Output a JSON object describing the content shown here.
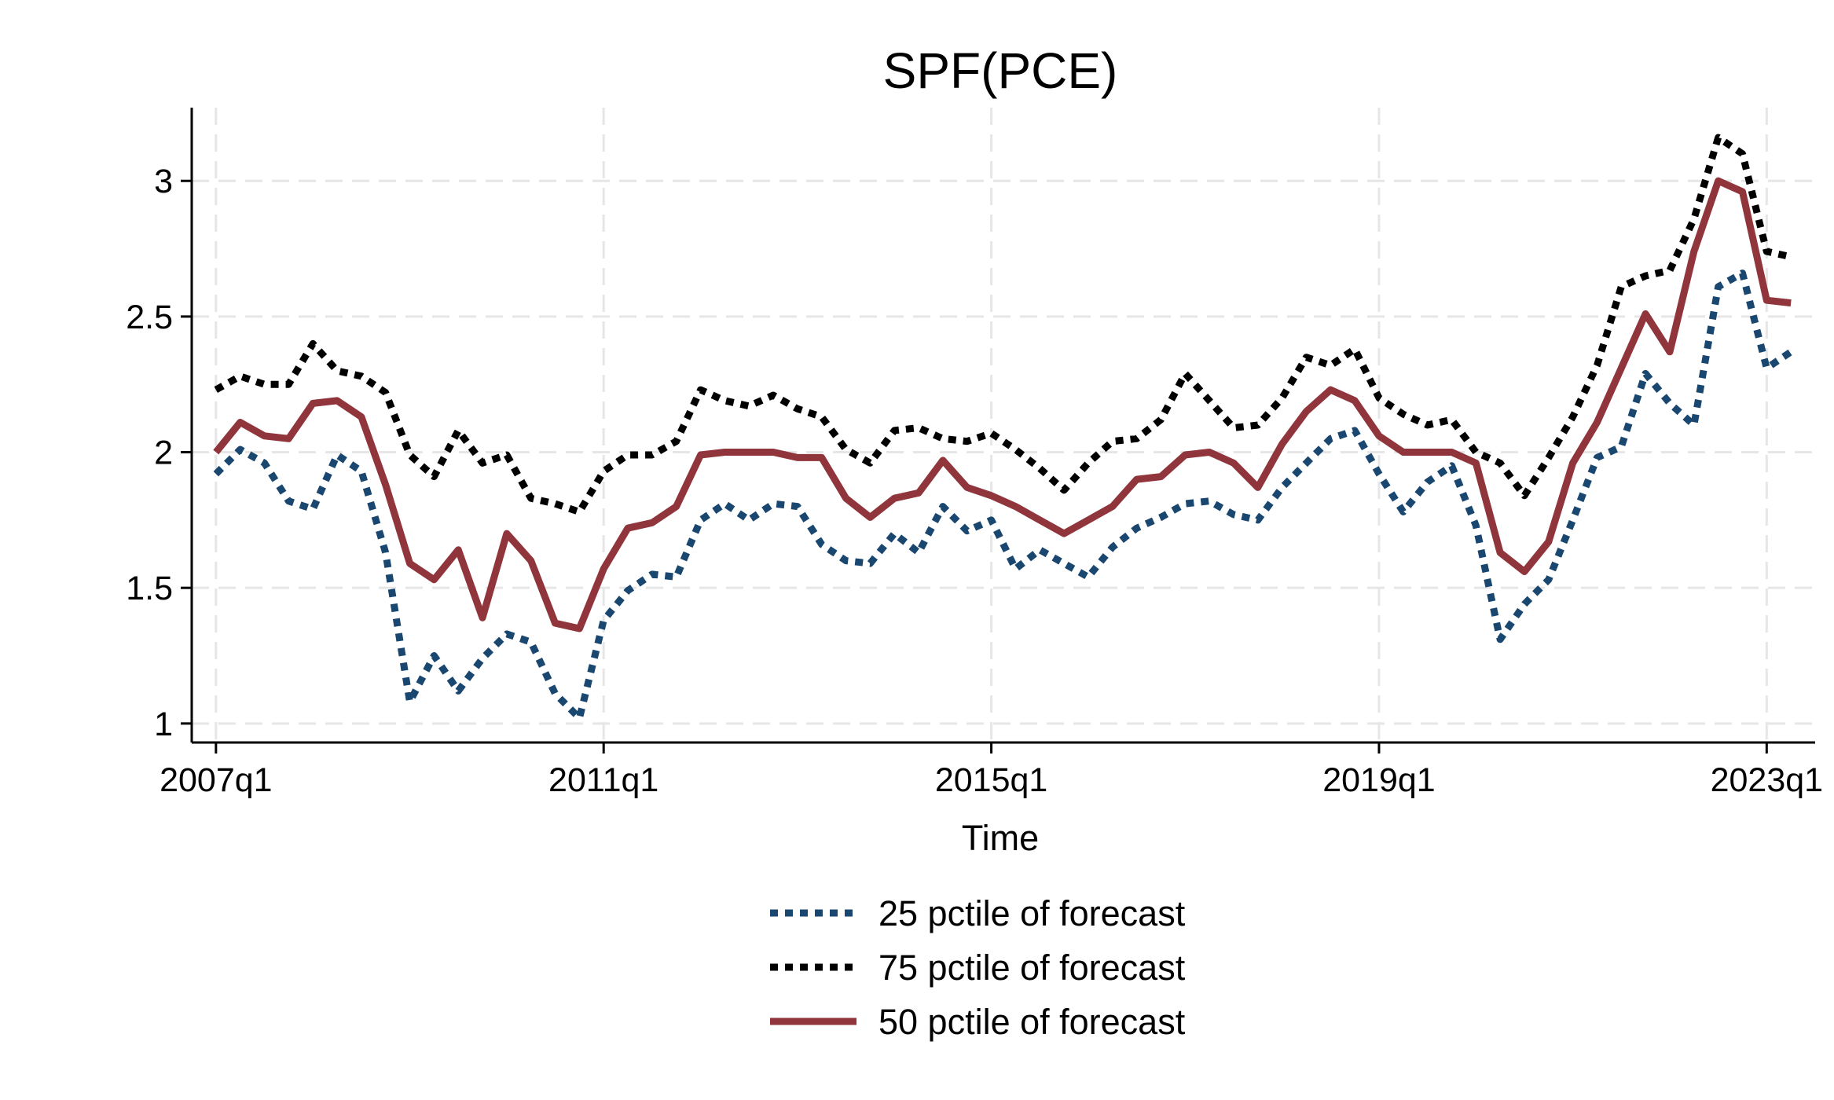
{
  "chart_data": {
    "type": "line",
    "title": "SPF(PCE)",
    "xlabel": "Time",
    "ylabel": "",
    "x_tick_labels": [
      "2007q1",
      "2011q1",
      "2015q1",
      "2019q1",
      "2023q1"
    ],
    "y_ticks": [
      1,
      1.5,
      2,
      2.5,
      3
    ],
    "y_tick_labels": [
      "1",
      "1.5",
      "2",
      "2.5",
      "3"
    ],
    "ylim": [
      0.93,
      3.27
    ],
    "xlim": [
      "2006q4",
      "2023q3"
    ],
    "grid": true,
    "legend_position": "bottom",
    "x": [
      "2007q1",
      "2007q2",
      "2007q3",
      "2007q4",
      "2008q1",
      "2008q2",
      "2008q3",
      "2008q4",
      "2009q1",
      "2009q2",
      "2009q3",
      "2009q4",
      "2010q1",
      "2010q2",
      "2010q3",
      "2010q4",
      "2011q1",
      "2011q2",
      "2011q3",
      "2011q4",
      "2012q1",
      "2012q2",
      "2012q3",
      "2012q4",
      "2013q1",
      "2013q2",
      "2013q3",
      "2013q4",
      "2014q1",
      "2014q2",
      "2014q3",
      "2014q4",
      "2015q1",
      "2015q2",
      "2015q3",
      "2015q4",
      "2016q1",
      "2016q2",
      "2016q3",
      "2016q4",
      "2017q1",
      "2017q2",
      "2017q3",
      "2017q4",
      "2018q1",
      "2018q2",
      "2018q3",
      "2018q4",
      "2019q1",
      "2019q2",
      "2019q3",
      "2019q4",
      "2020q1",
      "2020q2",
      "2020q3",
      "2020q4",
      "2021q1",
      "2021q2",
      "2021q3",
      "2021q4",
      "2022q1",
      "2022q2",
      "2022q3",
      "2022q4",
      "2023q1",
      "2023q2"
    ],
    "series": [
      {
        "name": "25 pctile of forecast",
        "color": "#1a476f",
        "style": "dotted",
        "values": [
          1.92,
          2.01,
          1.96,
          1.82,
          1.79,
          1.99,
          1.93,
          1.63,
          1.08,
          1.25,
          1.12,
          1.24,
          1.33,
          1.3,
          1.11,
          1.02,
          1.38,
          1.49,
          1.55,
          1.54,
          1.75,
          1.81,
          1.75,
          1.81,
          1.8,
          1.66,
          1.6,
          1.59,
          1.7,
          1.63,
          1.8,
          1.71,
          1.75,
          1.57,
          1.64,
          1.59,
          1.54,
          1.65,
          1.72,
          1.76,
          1.81,
          1.82,
          1.77,
          1.75,
          1.87,
          1.96,
          2.05,
          2.08,
          1.92,
          1.78,
          1.89,
          1.95,
          1.73,
          1.31,
          1.44,
          1.53,
          1.75,
          1.98,
          2.02,
          2.29,
          2.18,
          2.1,
          2.61,
          2.66,
          2.31,
          2.37
        ]
      },
      {
        "name": "75 pctile of forecast",
        "color": "#000000",
        "style": "dotted",
        "values": [
          2.23,
          2.28,
          2.25,
          2.25,
          2.4,
          2.3,
          2.28,
          2.22,
          1.99,
          1.91,
          2.08,
          1.96,
          1.99,
          1.83,
          1.81,
          1.78,
          1.93,
          1.99,
          1.99,
          2.04,
          2.23,
          2.19,
          2.17,
          2.21,
          2.16,
          2.13,
          2.01,
          1.96,
          2.08,
          2.09,
          2.05,
          2.04,
          2.07,
          2.01,
          1.94,
          1.86,
          1.96,
          2.04,
          2.05,
          2.12,
          2.29,
          2.19,
          2.09,
          2.1,
          2.2,
          2.35,
          2.32,
          2.38,
          2.2,
          2.14,
          2.1,
          2.12,
          2.0,
          1.96,
          1.84,
          1.98,
          2.13,
          2.32,
          2.61,
          2.65,
          2.67,
          2.86,
          3.16,
          3.1,
          2.74,
          2.72
        ]
      },
      {
        "name": "50 pctile of forecast",
        "color": "#90353b",
        "style": "solid",
        "values": [
          2.0,
          2.11,
          2.06,
          2.05,
          2.18,
          2.19,
          2.13,
          1.88,
          1.59,
          1.53,
          1.64,
          1.39,
          1.7,
          1.6,
          1.37,
          1.35,
          1.57,
          1.72,
          1.74,
          1.8,
          1.99,
          2.0,
          2.0,
          2.0,
          1.98,
          1.98,
          1.83,
          1.76,
          1.83,
          1.85,
          1.97,
          1.87,
          1.84,
          1.8,
          1.75,
          1.7,
          1.75,
          1.8,
          1.9,
          1.91,
          1.99,
          2.0,
          1.96,
          1.87,
          2.03,
          2.15,
          2.23,
          2.19,
          2.06,
          2.0,
          2.0,
          2.0,
          1.96,
          1.63,
          1.56,
          1.67,
          1.96,
          2.11,
          2.31,
          2.51,
          2.37,
          2.74,
          3.0,
          2.96,
          2.56,
          2.55
        ]
      }
    ]
  }
}
